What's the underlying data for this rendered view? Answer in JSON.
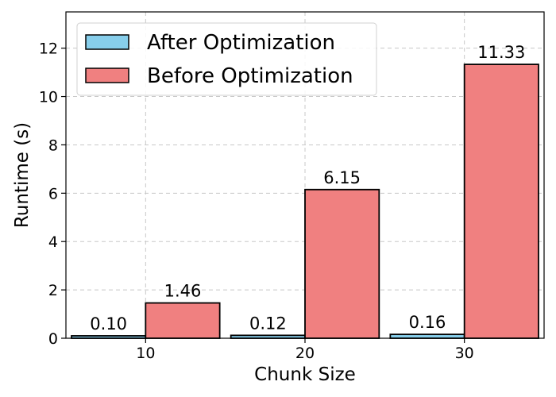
{
  "chart_data": {
    "type": "bar",
    "title": "",
    "xlabel": "Chunk Size",
    "ylabel": "Runtime (s)",
    "categories": [
      "10",
      "20",
      "30"
    ],
    "ylim": [
      0,
      13.5
    ],
    "yticks": [
      0,
      2,
      4,
      6,
      8,
      10,
      12
    ],
    "grid": true,
    "legend_position": "top-left",
    "series": [
      {
        "name": "After Optimization",
        "color": "#87ceeb",
        "values": [
          0.1,
          0.12,
          0.16
        ],
        "labels": [
          "0.10",
          "0.12",
          "0.16"
        ]
      },
      {
        "name": "Before Optimization",
        "color": "#f08080",
        "values": [
          1.46,
          6.15,
          11.33
        ],
        "labels": [
          "1.46",
          "6.15",
          "11.33"
        ]
      }
    ]
  }
}
